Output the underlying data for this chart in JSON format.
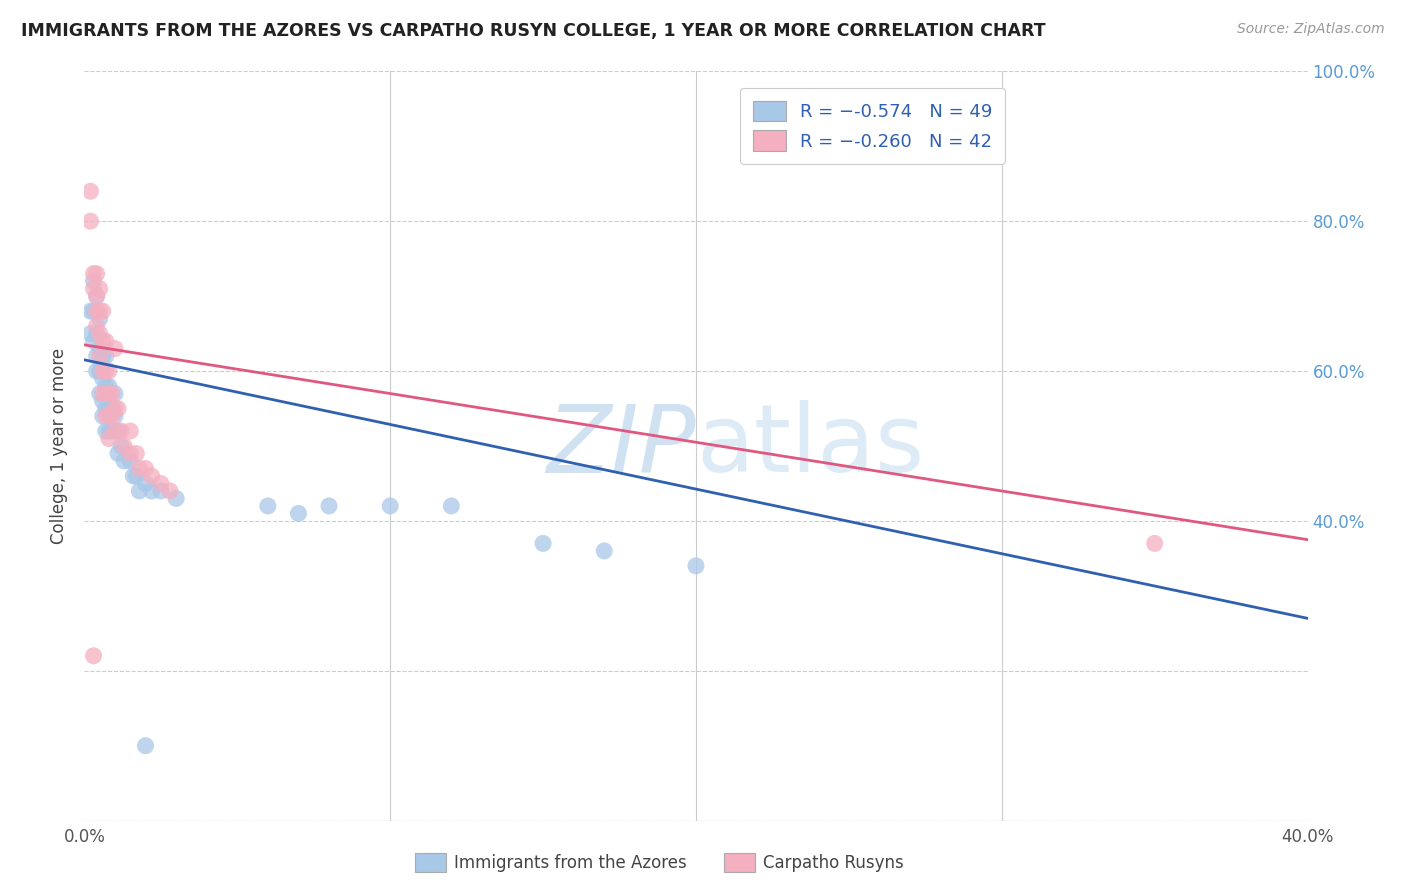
{
  "title": "IMMIGRANTS FROM THE AZORES VS CARPATHO RUSYN COLLEGE, 1 YEAR OR MORE CORRELATION CHART",
  "source": "Source: ZipAtlas.com",
  "ylabel": "College, 1 year or more",
  "legend1_R": "-0.574",
  "legend1_N": "49",
  "legend2_R": "-0.260",
  "legend2_N": "42",
  "legend1_label": "Immigrants from the Azores",
  "legend2_label": "Carpatho Rusyns",
  "blue_color": "#a8c8e8",
  "pink_color": "#f4afc0",
  "blue_line_color": "#3060b0",
  "pink_line_color": "#e05880",
  "watermark_zip": "ZIP",
  "watermark_atlas": "atlas",
  "xlim": [
    0.0,
    0.4
  ],
  "ylim": [
    0.0,
    1.0
  ],
  "blue_line": {
    "x0": 0.0,
    "y0": 0.615,
    "x1": 0.4,
    "y1": 0.27
  },
  "pink_line": {
    "x0": 0.0,
    "y0": 0.635,
    "x1": 0.4,
    "y1": 0.375
  },
  "blue_points": [
    [
      0.002,
      0.68
    ],
    [
      0.002,
      0.65
    ],
    [
      0.003,
      0.72
    ],
    [
      0.003,
      0.68
    ],
    [
      0.003,
      0.64
    ],
    [
      0.004,
      0.7
    ],
    [
      0.004,
      0.65
    ],
    [
      0.004,
      0.62
    ],
    [
      0.004,
      0.6
    ],
    [
      0.005,
      0.67
    ],
    [
      0.005,
      0.63
    ],
    [
      0.005,
      0.6
    ],
    [
      0.005,
      0.57
    ],
    [
      0.006,
      0.62
    ],
    [
      0.006,
      0.59
    ],
    [
      0.006,
      0.56
    ],
    [
      0.006,
      0.54
    ],
    [
      0.007,
      0.62
    ],
    [
      0.007,
      0.58
    ],
    [
      0.007,
      0.55
    ],
    [
      0.007,
      0.52
    ],
    [
      0.008,
      0.58
    ],
    [
      0.008,
      0.55
    ],
    [
      0.008,
      0.52
    ],
    [
      0.009,
      0.55
    ],
    [
      0.009,
      0.52
    ],
    [
      0.01,
      0.57
    ],
    [
      0.01,
      0.54
    ],
    [
      0.011,
      0.52
    ],
    [
      0.011,
      0.49
    ],
    [
      0.012,
      0.5
    ],
    [
      0.013,
      0.48
    ],
    [
      0.015,
      0.48
    ],
    [
      0.016,
      0.46
    ],
    [
      0.017,
      0.46
    ],
    [
      0.018,
      0.44
    ],
    [
      0.02,
      0.45
    ],
    [
      0.022,
      0.44
    ],
    [
      0.025,
      0.44
    ],
    [
      0.03,
      0.43
    ],
    [
      0.06,
      0.42
    ],
    [
      0.07,
      0.41
    ],
    [
      0.08,
      0.42
    ],
    [
      0.1,
      0.42
    ],
    [
      0.12,
      0.42
    ],
    [
      0.15,
      0.37
    ],
    [
      0.17,
      0.36
    ],
    [
      0.02,
      0.1
    ],
    [
      0.2,
      0.34
    ]
  ],
  "pink_points": [
    [
      0.002,
      0.84
    ],
    [
      0.002,
      0.8
    ],
    [
      0.003,
      0.73
    ],
    [
      0.003,
      0.71
    ],
    [
      0.004,
      0.73
    ],
    [
      0.004,
      0.7
    ],
    [
      0.004,
      0.68
    ],
    [
      0.004,
      0.66
    ],
    [
      0.005,
      0.71
    ],
    [
      0.005,
      0.68
    ],
    [
      0.005,
      0.65
    ],
    [
      0.005,
      0.62
    ],
    [
      0.006,
      0.68
    ],
    [
      0.006,
      0.64
    ],
    [
      0.006,
      0.6
    ],
    [
      0.006,
      0.57
    ],
    [
      0.007,
      0.64
    ],
    [
      0.007,
      0.6
    ],
    [
      0.007,
      0.57
    ],
    [
      0.007,
      0.54
    ],
    [
      0.008,
      0.6
    ],
    [
      0.008,
      0.57
    ],
    [
      0.008,
      0.54
    ],
    [
      0.008,
      0.51
    ],
    [
      0.009,
      0.57
    ],
    [
      0.009,
      0.54
    ],
    [
      0.01,
      0.63
    ],
    [
      0.01,
      0.55
    ],
    [
      0.01,
      0.52
    ],
    [
      0.011,
      0.55
    ],
    [
      0.012,
      0.52
    ],
    [
      0.013,
      0.5
    ],
    [
      0.015,
      0.52
    ],
    [
      0.015,
      0.49
    ],
    [
      0.017,
      0.49
    ],
    [
      0.018,
      0.47
    ],
    [
      0.02,
      0.47
    ],
    [
      0.022,
      0.46
    ],
    [
      0.025,
      0.45
    ],
    [
      0.028,
      0.44
    ],
    [
      0.35,
      0.37
    ],
    [
      0.003,
      0.22
    ]
  ]
}
